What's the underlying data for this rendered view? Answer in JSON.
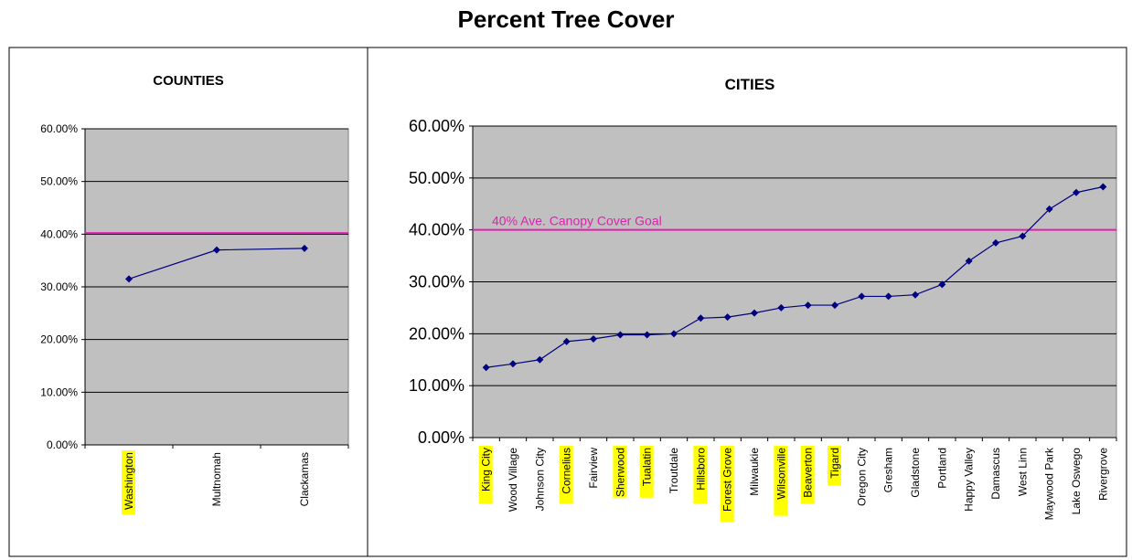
{
  "title": "Percent Tree Cover",
  "colors": {
    "plot_bg": "#c0c0c0",
    "series": "#000080",
    "goal_line": "#e020b0",
    "highlight": "#ffff00",
    "gridline": "#000000"
  },
  "chart_data": [
    {
      "type": "line",
      "title": "COUNTIES",
      "categories": [
        "Washington",
        "Multnomah",
        "Clackamas"
      ],
      "highlighted": [
        "Washington"
      ],
      "series": [
        {
          "values": [
            31.5,
            37.0,
            37.3
          ]
        }
      ],
      "reference_line": {
        "value": 40.2
      },
      "ylim": [
        0,
        60
      ],
      "yticks": [
        "0.00%",
        "10.00%",
        "20.00%",
        "30.00%",
        "40.00%",
        "50.00%",
        "60.00%"
      ],
      "grid": true
    },
    {
      "type": "line",
      "title": "CITIES",
      "categories": [
        "King City",
        "Wood Village",
        "Johnson City",
        "Cornelius",
        "Fairview",
        "Sherwood",
        "Tualatin",
        "Troutdale",
        "Hillsboro",
        "Forest Grove",
        "Milwaukie",
        "Wilsonville",
        "Beaverton",
        "Tigard",
        "Oregon City",
        "Gresham",
        "Gladstone",
        "Portland",
        "Happy Valley",
        "Damascus",
        "West Linn",
        "Maywood Park",
        "Lake Oswego",
        "Rivergrove"
      ],
      "highlighted": [
        "King City",
        "Cornelius",
        "Sherwood",
        "Tualatin",
        "Hillsboro",
        "Forest Grove",
        "Wilsonville",
        "Beaverton",
        "Tigard"
      ],
      "series": [
        {
          "values": [
            13.5,
            14.2,
            15.0,
            18.5,
            19.0,
            19.8,
            19.8,
            20.0,
            23.0,
            23.2,
            24.0,
            25.0,
            25.5,
            25.5,
            27.2,
            27.2,
            27.5,
            29.5,
            34.0,
            37.5,
            38.8,
            44.0,
            47.2,
            48.3
          ]
        }
      ],
      "reference_line": {
        "value": 40.0,
        "label": "40% Ave. Canopy Cover Goal"
      },
      "ylim": [
        0,
        60
      ],
      "yticks": [
        "0.00%",
        "10.00%",
        "20.00%",
        "30.00%",
        "40.00%",
        "50.00%",
        "60.00%"
      ],
      "grid": true
    }
  ]
}
